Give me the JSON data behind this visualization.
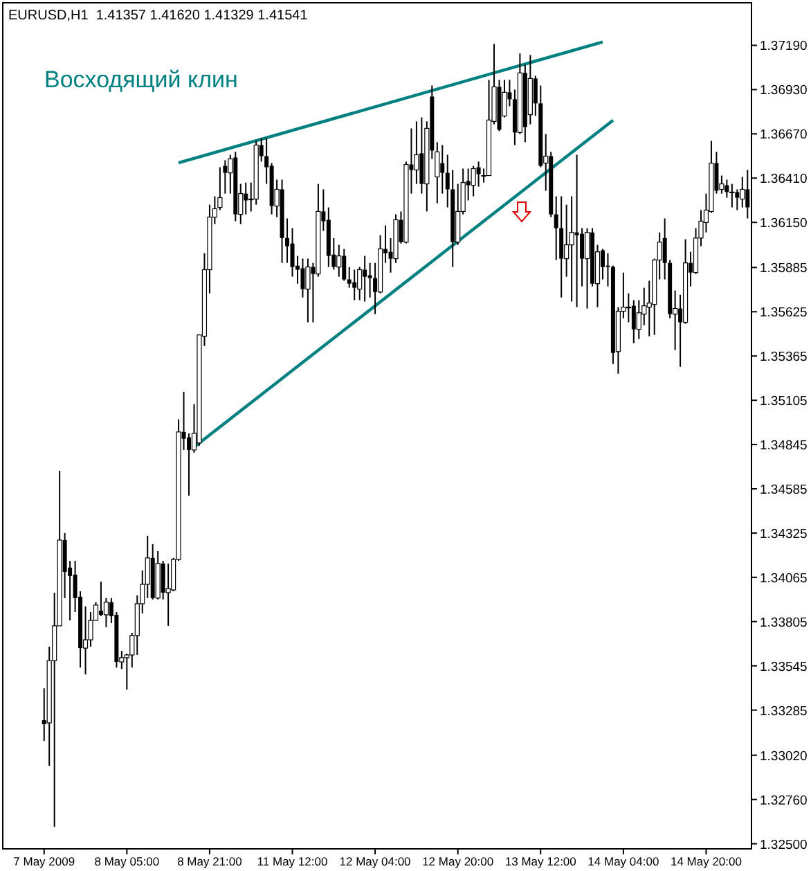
{
  "chart_data": {
    "type": "candlestick",
    "title": "EURUSD,H1  1.41357 1.41620 1.41329 1.41541",
    "annotations": [
      "Восходящий клин"
    ],
    "categories": [
      "7 May 2009",
      null,
      null,
      null,
      null,
      null,
      null,
      null,
      null,
      null,
      null,
      null,
      null,
      null,
      null,
      null,
      "8 May 05:00",
      null,
      null,
      null,
      null,
      null,
      null,
      null,
      null,
      null,
      null,
      null,
      null,
      null,
      null,
      null,
      "8 May 21:00",
      null,
      null,
      null,
      null,
      null,
      null,
      null,
      null,
      null,
      null,
      null,
      null,
      null,
      null,
      null,
      "11 May 12:00",
      null,
      null,
      null,
      null,
      null,
      null,
      null,
      null,
      null,
      null,
      null,
      null,
      null,
      null,
      null,
      "12 May 04:00",
      null,
      null,
      null,
      null,
      null,
      null,
      null,
      null,
      null,
      null,
      null,
      null,
      null,
      null,
      null,
      "12 May 20:00",
      null,
      null,
      null,
      null,
      null,
      null,
      null,
      null,
      null,
      null,
      null,
      null,
      null,
      null,
      null,
      "13 May 12:00",
      null,
      null,
      null,
      null,
      null,
      null,
      null,
      null,
      null,
      null,
      null,
      null,
      null,
      null,
      null,
      "14 May 04:00",
      null,
      null,
      null,
      null,
      null,
      null,
      null,
      null,
      null,
      null,
      null,
      null,
      null,
      null,
      null,
      "14 May 20:00",
      null,
      null,
      null,
      null,
      null,
      null,
      null,
      null
    ],
    "ohlc": [
      [
        1.33226,
        1.33413,
        1.33104,
        1.33202
      ],
      [
        1.3321,
        1.33658,
        1.32958,
        1.33576
      ],
      [
        1.33576,
        1.33975,
        1.32599,
        1.3378
      ],
      [
        1.3378,
        1.34691,
        1.3378,
        1.34284
      ],
      [
        1.34284,
        1.34325,
        1.33943,
        1.34097
      ],
      [
        1.34122,
        1.34162,
        1.33812,
        1.34073
      ],
      [
        1.34081,
        1.34162,
        1.33861,
        1.33943
      ],
      [
        1.33951,
        1.33983,
        1.33535,
        1.33649
      ],
      [
        1.33649,
        1.33894,
        1.33495,
        1.33698
      ],
      [
        1.33698,
        1.33861,
        1.33658,
        1.33812
      ],
      [
        1.33812,
        1.33919,
        1.33812,
        1.33902
      ],
      [
        1.33869,
        1.3404,
        1.33837,
        1.33845
      ],
      [
        1.33845,
        1.33943,
        1.33772,
        1.33919
      ],
      [
        1.33919,
        1.33943,
        1.33796,
        1.33837
      ],
      [
        1.33845,
        1.33861,
        1.33535,
        1.33568
      ],
      [
        1.33568,
        1.33633,
        1.33527,
        1.33593
      ],
      [
        1.33593,
        1.33617,
        1.33405,
        1.33609
      ],
      [
        1.33609,
        1.33739,
        1.33535,
        1.33723
      ],
      [
        1.33723,
        1.33959,
        1.33609,
        1.3391
      ],
      [
        1.3391,
        1.34105,
        1.33853,
        1.34024
      ],
      [
        1.34024,
        1.34309,
        1.33943,
        1.34179
      ],
      [
        1.34179,
        1.3426,
        1.33935,
        1.33943
      ],
      [
        1.33943,
        1.34219,
        1.33935,
        1.34146
      ],
      [
        1.34146,
        1.34162,
        1.33935,
        1.33975
      ],
      [
        1.33975,
        1.34146,
        1.3378,
        1.33999
      ],
      [
        1.33991,
        1.34179,
        1.33983,
        1.3417
      ],
      [
        1.3417,
        1.34993,
        1.34162,
        1.34919
      ],
      [
        1.34919,
        1.35155,
        1.34813,
        1.34879
      ],
      [
        1.34887,
        1.34911,
        1.34545,
        1.34813
      ],
      [
        1.34813,
        1.35082,
        1.34797,
        1.34911
      ],
      [
        1.34854,
        1.35489,
        1.34838,
        1.35489
      ],
      [
        1.35481,
        1.35969,
        1.35424,
        1.35872
      ],
      [
        1.35872,
        1.36254,
        1.35733,
        1.36181
      ],
      [
        1.36181,
        1.36303,
        1.3614,
        1.3623
      ],
      [
        1.36238,
        1.36474,
        1.36222,
        1.36295
      ],
      [
        1.36482,
        1.36515,
        1.36319,
        1.36441
      ],
      [
        1.36441,
        1.36547,
        1.36319,
        1.36523
      ],
      [
        1.36531,
        1.36564,
        1.36157,
        1.36197
      ],
      [
        1.36197,
        1.36376,
        1.3614,
        1.36319
      ],
      [
        1.36319,
        1.36384,
        1.36197,
        1.36279
      ],
      [
        1.36287,
        1.36384,
        1.36214,
        1.36287
      ],
      [
        1.36287,
        1.36629,
        1.36254,
        1.36604
      ],
      [
        1.36604,
        1.36645,
        1.36507,
        1.36539
      ],
      [
        1.36539,
        1.36645,
        1.36376,
        1.36474
      ],
      [
        1.36482,
        1.36498,
        1.36197,
        1.36246
      ],
      [
        1.36246,
        1.36401,
        1.36181,
        1.36344
      ],
      [
        1.36344,
        1.36401,
        1.35912,
        1.36058
      ],
      [
        1.36058,
        1.36173,
        1.35912,
        1.3601
      ],
      [
        1.36026,
        1.36116,
        1.35831,
        1.35888
      ],
      [
        1.35896,
        1.35953,
        1.3579,
        1.35872
      ],
      [
        1.3588,
        1.35937,
        1.35709,
        1.35758
      ],
      [
        1.35758,
        1.35937,
        1.35563,
        1.35888
      ],
      [
        1.35888,
        1.35912,
        1.35563,
        1.35847
      ],
      [
        1.35847,
        1.36376,
        1.35831,
        1.36214
      ],
      [
        1.36214,
        1.36344,
        1.361,
        1.36157
      ],
      [
        1.36165,
        1.36238,
        1.35888,
        1.35953
      ],
      [
        1.35961,
        1.36058,
        1.35872,
        1.35888
      ],
      [
        1.35888,
        1.36018,
        1.35831,
        1.35953
      ],
      [
        1.35953,
        1.35994,
        1.35807,
        1.35815
      ],
      [
        1.35815,
        1.35888,
        1.35766,
        1.3579
      ],
      [
        1.35798,
        1.35872,
        1.35693,
        1.35766
      ],
      [
        1.35758,
        1.35888,
        1.35693,
        1.35872
      ],
      [
        1.35872,
        1.35953,
        1.35685,
        1.35831
      ],
      [
        1.35839,
        1.35912,
        1.35709,
        1.35823
      ],
      [
        1.35823,
        1.35912,
        1.35611,
        1.35741
      ],
      [
        1.35741,
        1.36075,
        1.35733,
        1.35994
      ],
      [
        1.35994,
        1.36132,
        1.35912,
        1.35969
      ],
      [
        1.35977,
        1.36058,
        1.35855,
        1.35937
      ],
      [
        1.35937,
        1.36197,
        1.35912,
        1.36165
      ],
      [
        1.36165,
        1.36214,
        1.36026,
        1.36034
      ],
      [
        1.36034,
        1.36507,
        1.36026,
        1.3649
      ],
      [
        1.3649,
        1.36702,
        1.36319,
        1.36458
      ],
      [
        1.36458,
        1.36743,
        1.36376,
        1.36547
      ],
      [
        1.36556,
        1.36767,
        1.36319,
        1.36376
      ],
      [
        1.36376,
        1.36743,
        1.36214,
        1.36702
      ],
      [
        1.36889,
        1.36954,
        1.36523,
        1.36572
      ],
      [
        1.36417,
        1.36621,
        1.36262,
        1.36564
      ],
      [
        1.36498,
        1.36604,
        1.36319,
        1.36441
      ],
      [
        1.36441,
        1.36547,
        1.36238,
        1.36344
      ],
      [
        1.36344,
        1.36458,
        1.35888,
        1.36034
      ],
      [
        1.36034,
        1.36376,
        1.36018,
        1.36214
      ],
      [
        1.36214,
        1.36466,
        1.36197,
        1.36384
      ],
      [
        1.36393,
        1.36466,
        1.36279,
        1.36368
      ],
      [
        1.36368,
        1.36482,
        1.36303,
        1.36466
      ],
      [
        1.36474,
        1.36507,
        1.3636,
        1.36433
      ],
      [
        1.36425,
        1.36466,
        1.36384,
        1.36425
      ],
      [
        1.36425,
        1.36987,
        1.36425,
        1.36751
      ],
      [
        1.36743,
        1.37198,
        1.36726,
        1.36946
      ],
      [
        1.36946,
        1.36987,
        1.36686,
        1.36694
      ],
      [
        1.36775,
        1.36987,
        1.36767,
        1.36914
      ],
      [
        1.36914,
        1.36987,
        1.36832,
        1.36873
      ],
      [
        1.36873,
        1.3693,
        1.36604,
        1.36678
      ],
      [
        1.36678,
        1.37142,
        1.36669,
        1.37028
      ],
      [
        1.37028,
        1.37076,
        1.36621,
        1.3671
      ],
      [
        1.36783,
        1.37133,
        1.36726,
        1.36995
      ],
      [
        1.36995,
        1.37011,
        1.36775,
        1.36849
      ],
      [
        1.36849,
        1.36954,
        1.36474,
        1.36482
      ],
      [
        1.36498,
        1.36669,
        1.36336,
        1.36539
      ],
      [
        1.36539,
        1.36564,
        1.36181,
        1.36197
      ],
      [
        1.36197,
        1.36303,
        1.35929,
        1.36116
      ],
      [
        1.36116,
        1.36303,
        1.35709,
        1.35937
      ],
      [
        1.35937,
        1.36254,
        1.35831,
        1.36018
      ],
      [
        1.36018,
        1.36303,
        1.35685,
        1.36091
      ],
      [
        1.36091,
        1.36547,
        1.35652,
        1.36075
      ],
      [
        1.36083,
        1.36116,
        1.35774,
        1.35937
      ],
      [
        1.35937,
        1.36116,
        1.35644,
        1.36091
      ],
      [
        1.36091,
        1.36116,
        1.35774,
        1.3579
      ],
      [
        1.3579,
        1.36018,
        1.35652,
        1.35977
      ],
      [
        1.35986,
        1.35994,
        1.35815,
        1.35888
      ],
      [
        1.35896,
        1.35969,
        1.35774,
        1.35888
      ],
      [
        1.35888,
        1.35896,
        1.35318,
        1.35383
      ],
      [
        1.35391,
        1.35652,
        1.35261,
        1.35628
      ],
      [
        1.35628,
        1.35855,
        1.35587,
        1.35652
      ],
      [
        1.35652,
        1.35733,
        1.35563,
        1.35652
      ],
      [
        1.3566,
        1.35693,
        1.3544,
        1.35522
      ],
      [
        1.35522,
        1.35693,
        1.35465,
        1.35619
      ],
      [
        1.35611,
        1.35766,
        1.35546,
        1.3566
      ],
      [
        1.35652,
        1.35807,
        1.35481,
        1.35676
      ],
      [
        1.35668,
        1.35937,
        1.35489,
        1.35929
      ],
      [
        1.35929,
        1.36091,
        1.35815,
        1.36034
      ],
      [
        1.36058,
        1.36173,
        1.35815,
        1.35912
      ],
      [
        1.35912,
        1.35929,
        1.35587,
        1.35611
      ],
      [
        1.35611,
        1.3575,
        1.354,
        1.35644
      ],
      [
        1.35644,
        1.35725,
        1.35302,
        1.35563
      ],
      [
        1.35563,
        1.36051,
        1.35554,
        1.35912
      ],
      [
        1.35912,
        1.35977,
        1.35774,
        1.35855
      ],
      [
        1.35855,
        1.36116,
        1.35847,
        1.36058
      ],
      [
        1.36058,
        1.36222,
        1.3601,
        1.36157
      ],
      [
        1.36149,
        1.36319,
        1.36091,
        1.36222
      ],
      [
        1.36214,
        1.36629,
        1.36206,
        1.36498
      ],
      [
        1.36498,
        1.36564,
        1.36319,
        1.36336
      ],
      [
        1.36344,
        1.36425,
        1.36319,
        1.36376
      ],
      [
        1.36368,
        1.36401,
        1.36295,
        1.36328
      ],
      [
        1.36328,
        1.36376,
        1.36238,
        1.36328
      ],
      [
        1.36328,
        1.36344,
        1.36222,
        1.36295
      ],
      [
        1.36287,
        1.36417,
        1.36238,
        1.36344
      ],
      [
        1.36344,
        1.36458,
        1.36173,
        1.36238
      ]
    ],
    "series": [
      {
        "type": "line",
        "color": "#008080",
        "values": [
          null,
          null,
          null,
          null,
          null,
          null,
          null,
          null,
          null,
          null,
          null,
          null,
          null,
          null,
          null,
          null,
          null,
          null,
          null,
          null,
          null,
          null,
          null,
          null,
          null,
          null,
          1.365,
          null,
          null,
          null,
          null,
          null,
          null,
          null,
          null,
          null,
          null,
          null,
          null,
          null,
          null,
          null,
          null,
          null,
          null,
          null,
          null,
          null,
          null,
          null,
          null,
          null,
          null,
          null,
          null,
          null,
          null,
          null,
          null,
          null,
          null,
          null,
          null,
          null,
          null,
          null,
          null,
          null,
          null,
          null,
          null,
          null,
          null,
          null,
          null,
          null,
          null,
          null,
          null,
          null,
          null,
          null,
          null,
          null,
          null,
          null,
          null,
          null,
          null,
          null,
          null,
          null,
          null,
          null,
          null,
          null,
          null,
          null,
          null,
          null,
          null,
          null,
          null,
          null,
          null,
          null,
          null,
          null,
          1.3721,
          null,
          null,
          null,
          null,
          null,
          null,
          null,
          null,
          null,
          null,
          null,
          null,
          null,
          null,
          null,
          null,
          null,
          null,
          null,
          null,
          null,
          null,
          null,
          null,
          null,
          null,
          null,
          null
        ]
      },
      {
        "type": "line",
        "color": "#008080",
        "values": [
          null,
          null,
          null,
          null,
          null,
          null,
          null,
          null,
          null,
          null,
          null,
          null,
          null,
          null,
          null,
          null,
          null,
          null,
          null,
          null,
          null,
          null,
          null,
          null,
          null,
          null,
          null,
          null,
          null,
          1.3483,
          null,
          null,
          null,
          null,
          null,
          null,
          null,
          null,
          null,
          null,
          null,
          null,
          null,
          null,
          null,
          null,
          null,
          null,
          null,
          null,
          null,
          null,
          null,
          null,
          null,
          null,
          null,
          null,
          null,
          null,
          null,
          null,
          null,
          null,
          null,
          null,
          null,
          null,
          null,
          null,
          null,
          null,
          null,
          null,
          null,
          null,
          null,
          null,
          null,
          null,
          null,
          null,
          null,
          null,
          null,
          null,
          null,
          null,
          null,
          null,
          null,
          null,
          null,
          null,
          null,
          null,
          null,
          null,
          null,
          null,
          null,
          null,
          null,
          null,
          null,
          null,
          null,
          null,
          null,
          null,
          1.3675,
          null,
          null,
          null,
          null,
          null,
          null,
          null,
          null,
          null,
          null,
          null,
          null,
          null,
          null,
          null,
          null,
          null,
          null,
          null,
          null,
          null,
          null,
          null,
          null,
          null,
          null
        ]
      }
    ],
    "ylim": [
      1.3247,
      1.3744
    ],
    "yticks": [
      {
        "value": 1.3719,
        "label": "1.37190"
      },
      {
        "value": 1.3693,
        "label": "1.36930"
      },
      {
        "value": 1.3667,
        "label": "1.36670"
      },
      {
        "value": 1.3641,
        "label": "1.36410"
      },
      {
        "value": 1.3615,
        "label": "1.36150"
      },
      {
        "value": 1.35885,
        "label": "1.35885"
      },
      {
        "value": 1.35625,
        "label": "1.35625"
      },
      {
        "value": 1.35365,
        "label": "1.35365"
      },
      {
        "value": 1.35105,
        "label": "1.35105"
      },
      {
        "value": 1.34845,
        "label": "1.34845"
      },
      {
        "value": 1.34585,
        "label": "1.34585"
      },
      {
        "value": 1.34325,
        "label": "1.34325"
      },
      {
        "value": 1.34065,
        "label": "1.34065"
      },
      {
        "value": 1.33805,
        "label": "1.33805"
      },
      {
        "value": 1.33545,
        "label": "1.33545"
      },
      {
        "value": 1.33285,
        "label": "1.33285"
      },
      {
        "value": 1.3302,
        "label": "1.33020"
      },
      {
        "value": 1.3276,
        "label": "1.32760"
      },
      {
        "value": 1.325,
        "label": "1.32500"
      }
    ]
  }
}
